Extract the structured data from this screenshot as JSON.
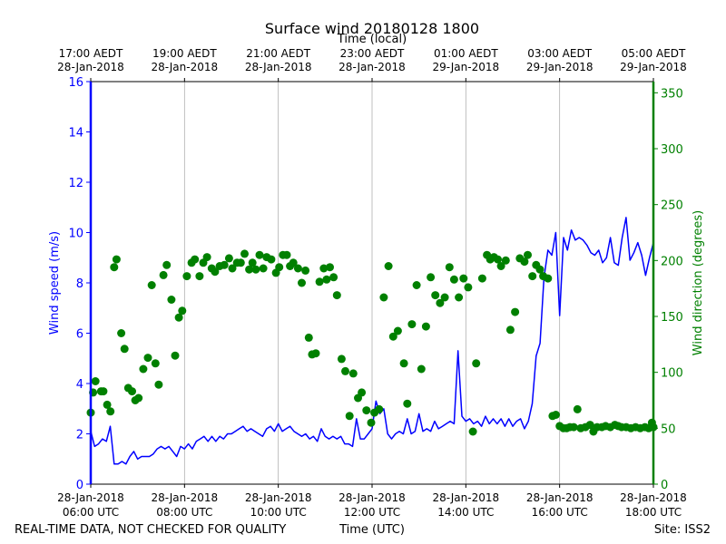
{
  "chart_data": {
    "type": "line+scatter",
    "title": "Surface wind 20180128 1800",
    "top_axis_label": "Time (local)",
    "xlabel": "Time (UTC)",
    "ylabel_left": "Wind speed (m/s)",
    "ylabel_right": "Wind direction (degrees)",
    "footer_left": "REAL-TIME DATA, NOT CHECKED FOR QUALITY",
    "footer_right": "Site: ISS2",
    "x_range_hours": [
      6.0,
      18.0
    ],
    "left_ylim": [
      0,
      16
    ],
    "right_ylim": [
      0,
      360
    ],
    "left_ticks": [
      0,
      2,
      4,
      6,
      8,
      10,
      12,
      14,
      16
    ],
    "right_ticks": [
      0,
      50,
      100,
      150,
      200,
      250,
      300,
      350
    ],
    "vertical_grid": true,
    "bottom_ticks": [
      {
        "h": 6,
        "line1": "28-Jan-2018",
        "line2": "06:00 UTC"
      },
      {
        "h": 8,
        "line1": "28-Jan-2018",
        "line2": "08:00 UTC"
      },
      {
        "h": 10,
        "line1": "28-Jan-2018",
        "line2": "10:00 UTC"
      },
      {
        "h": 12,
        "line1": "28-Jan-2018",
        "line2": "12:00 UTC"
      },
      {
        "h": 14,
        "line1": "28-Jan-2018",
        "line2": "14:00 UTC"
      },
      {
        "h": 16,
        "line1": "28-Jan-2018",
        "line2": "16:00 UTC"
      },
      {
        "h": 18,
        "line1": "28-Jan-2018",
        "line2": "18:00 UTC"
      }
    ],
    "top_ticks": [
      {
        "h": 6,
        "line1": "17:00 AEDT",
        "line2": "28-Jan-2018"
      },
      {
        "h": 8,
        "line1": "19:00 AEDT",
        "line2": "28-Jan-2018"
      },
      {
        "h": 10,
        "line1": "21:00 AEDT",
        "line2": "28-Jan-2018"
      },
      {
        "h": 12,
        "line1": "23:00 AEDT",
        "line2": "28-Jan-2018"
      },
      {
        "h": 14,
        "line1": "01:00 AEDT",
        "line2": "29-Jan-2018"
      },
      {
        "h": 16,
        "line1": "03:00 AEDT",
        "line2": "29-Jan-2018"
      },
      {
        "h": 18,
        "line1": "05:00 AEDT",
        "line2": "29-Jan-2018"
      }
    ],
    "series": [
      {
        "name": "Wind speed (m/s)",
        "axis": "left",
        "color": "#0000ff",
        "style": "line",
        "start_hour": 6.0,
        "step_minutes": 5,
        "values": [
          2.1,
          1.5,
          1.6,
          1.8,
          1.7,
          2.3,
          0.8,
          0.8,
          0.9,
          0.8,
          1.1,
          1.3,
          1.0,
          1.1,
          1.1,
          1.1,
          1.2,
          1.4,
          1.5,
          1.4,
          1.5,
          1.3,
          1.1,
          1.5,
          1.4,
          1.6,
          1.4,
          1.7,
          1.8,
          1.9,
          1.7,
          1.9,
          1.7,
          1.9,
          1.8,
          2.0,
          2.0,
          2.1,
          2.2,
          2.3,
          2.1,
          2.2,
          2.1,
          2.0,
          1.9,
          2.2,
          2.3,
          2.1,
          2.4,
          2.1,
          2.2,
          2.3,
          2.1,
          2.0,
          1.9,
          2.0,
          1.8,
          1.9,
          1.7,
          2.2,
          1.9,
          1.8,
          1.9,
          1.8,
          1.9,
          1.6,
          1.6,
          1.5,
          2.6,
          1.8,
          1.8,
          2.0,
          2.2,
          3.3,
          2.8,
          3.0,
          2.0,
          1.8,
          2.0,
          2.1,
          2.0,
          2.6,
          2.0,
          2.1,
          2.8,
          2.1,
          2.2,
          2.1,
          2.5,
          2.2,
          2.3,
          2.4,
          2.5,
          2.4,
          5.3,
          2.7,
          2.5,
          2.6,
          2.4,
          2.5,
          2.3,
          2.7,
          2.4,
          2.6,
          2.4,
          2.6,
          2.3,
          2.6,
          2.3,
          2.5,
          2.6,
          2.2,
          2.5,
          3.2,
          5.1,
          5.6,
          8.2,
          9.3,
          9.1,
          10.0,
          6.7,
          9.8,
          9.3,
          10.1,
          9.7,
          9.8,
          9.7,
          9.5,
          9.2,
          9.1,
          9.3,
          8.8,
          9.0,
          9.8,
          8.8,
          8.7,
          9.8,
          10.6,
          8.9,
          9.2,
          9.6,
          9.1,
          8.3,
          9.0,
          9.6
        ]
      },
      {
        "name": "Wind direction (degrees)",
        "axis": "right",
        "color": "#008000",
        "style": "scatter",
        "points": [
          [
            6.0,
            64
          ],
          [
            6.05,
            82
          ],
          [
            6.1,
            92
          ],
          [
            6.22,
            83
          ],
          [
            6.27,
            83
          ],
          [
            6.35,
            71
          ],
          [
            6.42,
            65
          ],
          [
            6.5,
            194
          ],
          [
            6.55,
            201
          ],
          [
            6.65,
            135
          ],
          [
            6.72,
            121
          ],
          [
            6.8,
            86
          ],
          [
            6.88,
            83
          ],
          [
            6.95,
            75
          ],
          [
            7.02,
            77
          ],
          [
            7.12,
            103
          ],
          [
            7.22,
            113
          ],
          [
            7.3,
            178
          ],
          [
            7.38,
            108
          ],
          [
            7.45,
            89
          ],
          [
            7.55,
            187
          ],
          [
            7.62,
            196
          ],
          [
            7.72,
            165
          ],
          [
            7.8,
            115
          ],
          [
            7.88,
            149
          ],
          [
            7.95,
            155
          ],
          [
            8.05,
            186
          ],
          [
            8.15,
            198
          ],
          [
            8.22,
            201
          ],
          [
            8.32,
            186
          ],
          [
            8.4,
            198
          ],
          [
            8.48,
            203
          ],
          [
            8.58,
            193
          ],
          [
            8.65,
            190
          ],
          [
            8.75,
            195
          ],
          [
            8.85,
            196
          ],
          [
            8.95,
            202
          ],
          [
            9.02,
            193
          ],
          [
            9.12,
            198
          ],
          [
            9.2,
            198
          ],
          [
            9.28,
            206
          ],
          [
            9.38,
            192
          ],
          [
            9.45,
            198
          ],
          [
            9.52,
            192
          ],
          [
            9.6,
            205
          ],
          [
            9.68,
            193
          ],
          [
            9.75,
            203
          ],
          [
            9.85,
            201
          ],
          [
            9.95,
            189
          ],
          [
            10.02,
            194
          ],
          [
            10.1,
            205
          ],
          [
            10.18,
            205
          ],
          [
            10.25,
            195
          ],
          [
            10.32,
            198
          ],
          [
            10.42,
            193
          ],
          [
            10.5,
            180
          ],
          [
            10.58,
            191
          ],
          [
            10.65,
            131
          ],
          [
            10.72,
            116
          ],
          [
            10.8,
            117
          ],
          [
            10.88,
            181
          ],
          [
            10.97,
            193
          ],
          [
            11.03,
            183
          ],
          [
            11.1,
            194
          ],
          [
            11.18,
            185
          ],
          [
            11.25,
            169
          ],
          [
            11.35,
            112
          ],
          [
            11.43,
            101
          ],
          [
            11.52,
            61
          ],
          [
            11.6,
            99
          ],
          [
            11.7,
            77
          ],
          [
            11.78,
            82
          ],
          [
            11.88,
            66
          ],
          [
            11.98,
            55
          ],
          [
            12.05,
            64
          ],
          [
            12.15,
            67
          ],
          [
            12.25,
            167
          ],
          [
            12.35,
            195
          ],
          [
            12.45,
            132
          ],
          [
            12.55,
            137
          ],
          [
            12.68,
            108
          ],
          [
            12.75,
            72
          ],
          [
            12.85,
            143
          ],
          [
            12.95,
            178
          ],
          [
            13.05,
            103
          ],
          [
            13.15,
            141
          ],
          [
            13.25,
            185
          ],
          [
            13.35,
            169
          ],
          [
            13.45,
            162
          ],
          [
            13.55,
            167
          ],
          [
            13.65,
            194
          ],
          [
            13.75,
            183
          ],
          [
            13.85,
            167
          ],
          [
            13.95,
            184
          ],
          [
            14.05,
            176
          ],
          [
            14.15,
            47
          ],
          [
            14.22,
            108
          ],
          [
            14.35,
            184
          ],
          [
            14.45,
            205
          ],
          [
            14.52,
            201
          ],
          [
            14.6,
            203
          ],
          [
            14.68,
            201
          ],
          [
            14.75,
            195
          ],
          [
            14.85,
            200
          ],
          [
            14.95,
            138
          ],
          [
            15.05,
            154
          ],
          [
            15.15,
            202
          ],
          [
            15.25,
            199
          ],
          [
            15.32,
            205
          ],
          [
            15.42,
            186
          ],
          [
            15.5,
            196
          ],
          [
            15.58,
            192
          ],
          [
            15.65,
            186
          ],
          [
            15.75,
            184
          ],
          [
            15.85,
            61
          ],
          [
            15.92,
            62
          ],
          [
            16.0,
            52
          ],
          [
            16.08,
            50
          ],
          [
            16.15,
            50
          ],
          [
            16.22,
            51
          ],
          [
            16.3,
            51
          ],
          [
            16.38,
            67
          ],
          [
            16.45,
            50
          ],
          [
            16.55,
            51
          ],
          [
            16.65,
            53
          ],
          [
            16.72,
            47
          ],
          [
            16.8,
            51
          ],
          [
            16.9,
            51
          ],
          [
            16.98,
            52
          ],
          [
            17.08,
            51
          ],
          [
            17.18,
            53
          ],
          [
            17.25,
            52
          ],
          [
            17.32,
            51
          ],
          [
            17.42,
            51
          ],
          [
            17.52,
            50
          ],
          [
            17.62,
            51
          ],
          [
            17.72,
            50
          ],
          [
            17.82,
            51
          ],
          [
            17.9,
            50
          ],
          [
            17.97,
            55
          ],
          [
            18.05,
            51
          ]
        ]
      }
    ]
  }
}
